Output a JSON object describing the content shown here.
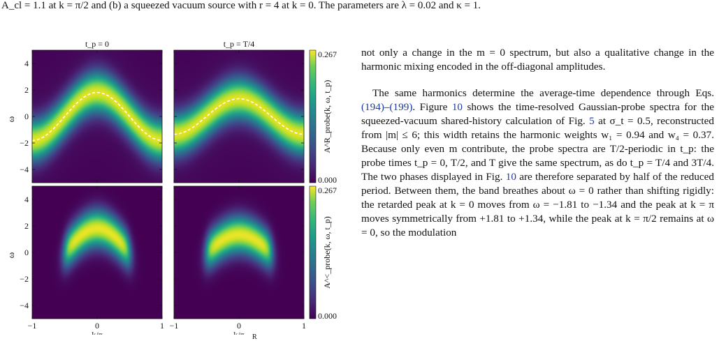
{
  "caption": {
    "text": "A_cl = 1.1 at k = π/2 and (b) a squeezed vacuum source with r = 4 at k = 0. The parameters are λ = 0.02 and κ = 1."
  },
  "figure": {
    "panel_titles": [
      "t_p = 0",
      "t_p = T/4"
    ],
    "row_ylabels": [
      "A^R_probe(k, ω, t_p)",
      "A^<_probe(k, ω, t_p)"
    ],
    "colorbar_max": "0.267",
    "colorbar_min": "0.000",
    "y_axis_label": "ω",
    "x_axis_label": "k/π",
    "y_ticks": [
      "4",
      "2",
      "0",
      "−2",
      "−4"
    ],
    "x_ticks_left": [
      "−1",
      "0",
      "1"
    ],
    "x_ticks_right": [
      "−1",
      "0",
      "1"
    ]
  },
  "chart_data": [
    {
      "type": "heatmap",
      "panel": "retarded, t_p = 0",
      "title": "t_p = 0",
      "xlabel": "k/π",
      "ylabel": "ω",
      "xlim": [
        -1,
        1
      ],
      "ylim": [
        -5,
        5
      ],
      "clim": [
        0,
        0.267
      ],
      "band_center": "ω ≈ 1.81·cos(π·k)",
      "band_width": 1.2,
      "peaks": [
        {
          "k": -1,
          "omega": 1.81
        },
        {
          "k": 0,
          "omega": -1.81
        },
        {
          "k": 0.5,
          "omega": 0
        },
        {
          "k": 1,
          "omega": 1.81
        }
      ],
      "overlay": "dashed white peak line"
    },
    {
      "type": "heatmap",
      "panel": "retarded, t_p = T/4",
      "title": "t_p = T/4",
      "xlabel": "k/π",
      "ylabel": "ω",
      "xlim": [
        -1,
        1
      ],
      "ylim": [
        -5,
        5
      ],
      "clim": [
        0,
        0.267
      ],
      "band_center": "ω ≈ 1.34·cos(π·k)",
      "band_width": 1.2,
      "peaks": [
        {
          "k": -1,
          "omega": 1.34
        },
        {
          "k": 0,
          "omega": -1.34
        },
        {
          "k": 0.5,
          "omega": 0
        },
        {
          "k": 1,
          "omega": 1.34
        }
      ],
      "overlay": "dashed white peak line"
    },
    {
      "type": "heatmap",
      "panel": "lesser, t_p = 0",
      "xlabel": "k/π",
      "ylabel": "ω",
      "xlim": [
        -1,
        1
      ],
      "ylim": [
        -5,
        5
      ],
      "clim": [
        0,
        0.267
      ],
      "band_center": "ω ≈ 1.81·cos(π·k)",
      "k_support": [
        -0.5,
        0.5
      ]
    },
    {
      "type": "heatmap",
      "panel": "lesser, t_p = T/4",
      "xlabel": "k/π",
      "ylabel": "ω",
      "xlim": [
        -1,
        1
      ],
      "ylim": [
        -5,
        5
      ],
      "clim": [
        0,
        0.267
      ],
      "band_center": "ω ≈ 1.34·cos(π·k)",
      "k_support": [
        -0.5,
        0.5
      ]
    }
  ],
  "body": {
    "p1": "not only a change in the m = 0 spectrum, but also a qualitative change in the harmonic mixing encoded in the off-diagonal amplitudes.",
    "p2_a": "The same harmonics determine the average-time dependence through Eqs. ",
    "p2_ref1": "(194)",
    "p2_b": "–",
    "p2_ref2": "(199)",
    "p2_c": ". Figure ",
    "p2_ref3": "10",
    "p2_d": " shows the time-resolved Gaussian-probe spectra for the squeezed-vacuum shared-history calculation of Fig. ",
    "p2_ref4": "5",
    "p2_e": " at σ_t = 0.5, reconstructed from |m| ≤ 6; this width retains the harmonic weights w₁ = 0.94 and w₄ = 0.37. Because only even m contribute, the probe spectra are T/2-periodic in t_p: the probe times t_p = 0, T/2, and T give the same spectrum, as do t_p = T/4 and 3T/4. The two phases displayed in Fig. ",
    "p2_ref5": "10",
    "p2_f": " are therefore separated by half of the reduced period. Between them, the band breathes about ω = 0 rather than shifting rigidly: the retarded peak at k = 0 moves from ω = −1.81 to −1.34 and the peak at k = π moves symmetrically from +1.81 to +1.34, while the peak at k = π/2 remains at ω = 0, so the modulation"
  },
  "footer_fragment": "R"
}
